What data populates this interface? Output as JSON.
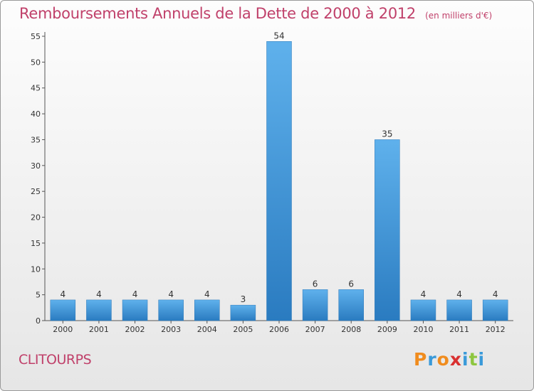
{
  "header": {
    "title": "Remboursements Annuels de la Dette de 2000 à 2012",
    "subtitle": "(en milliers d'€)"
  },
  "commune": "CLITOURPS",
  "logo": {
    "letters": [
      "P",
      "r",
      "o",
      "x",
      "i",
      "t",
      "i"
    ],
    "colors": [
      "#f08c1e",
      "#3a9ad9",
      "#f08c1e",
      "#d93030",
      "#3a9ad9",
      "#8dc63f",
      "#3a9ad9"
    ]
  },
  "chart_data": {
    "type": "bar",
    "categories": [
      "2000",
      "2001",
      "2002",
      "2003",
      "2004",
      "2005",
      "2006",
      "2007",
      "2008",
      "2009",
      "2010",
      "2011",
      "2012"
    ],
    "values": [
      4,
      4,
      4,
      4,
      4,
      3,
      54,
      6,
      6,
      35,
      4,
      4,
      4
    ],
    "title": "Remboursements Annuels de la Dette de 2000 à 2012",
    "subtitle": "(en milliers d'€)",
    "xlabel": "",
    "ylabel": "",
    "ylim": [
      0,
      55
    ],
    "yticks": [
      0,
      5,
      10,
      15,
      20,
      25,
      30,
      35,
      40,
      45,
      50,
      55
    ],
    "grid": false,
    "legend": "none",
    "bar_color": "#3a8fd4",
    "data_labels": true
  }
}
